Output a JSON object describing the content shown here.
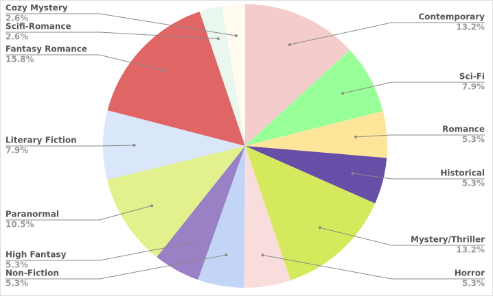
{
  "chart_data": {
    "type": "pie",
    "categories": [
      "Contemporary",
      "Sci-Fi",
      "Romance",
      "Historical",
      "Mystery/Thriller",
      "Horror",
      "Non-Fiction",
      "High Fantasy",
      "Paranormal",
      "Literary Fiction",
      "Fantasy Romance",
      "Scifi-Romance",
      "Cozy Mystery"
    ],
    "values": [
      13.2,
      7.9,
      5.3,
      5.3,
      13.2,
      5.3,
      5.3,
      5.3,
      10.5,
      7.9,
      15.8,
      2.6,
      2.6
    ],
    "value_labels": [
      "13.2%",
      "7.9%",
      "5.3%",
      "5.3%",
      "13.2%",
      "5.3%",
      "5.3%",
      "5.3%",
      "10.5%",
      "7.9%",
      "15.8%",
      "2.6%",
      "2.6%"
    ],
    "colors": [
      "#f4cccc",
      "#99ff99",
      "#ffe599",
      "#674ea7",
      "#d4ea5c",
      "#f9dcdc",
      "#c3d5f7",
      "#9a80c4",
      "#e2f08e",
      "#dae6fa",
      "#e06666",
      "#eaf7ee",
      "#fffbee"
    ]
  }
}
